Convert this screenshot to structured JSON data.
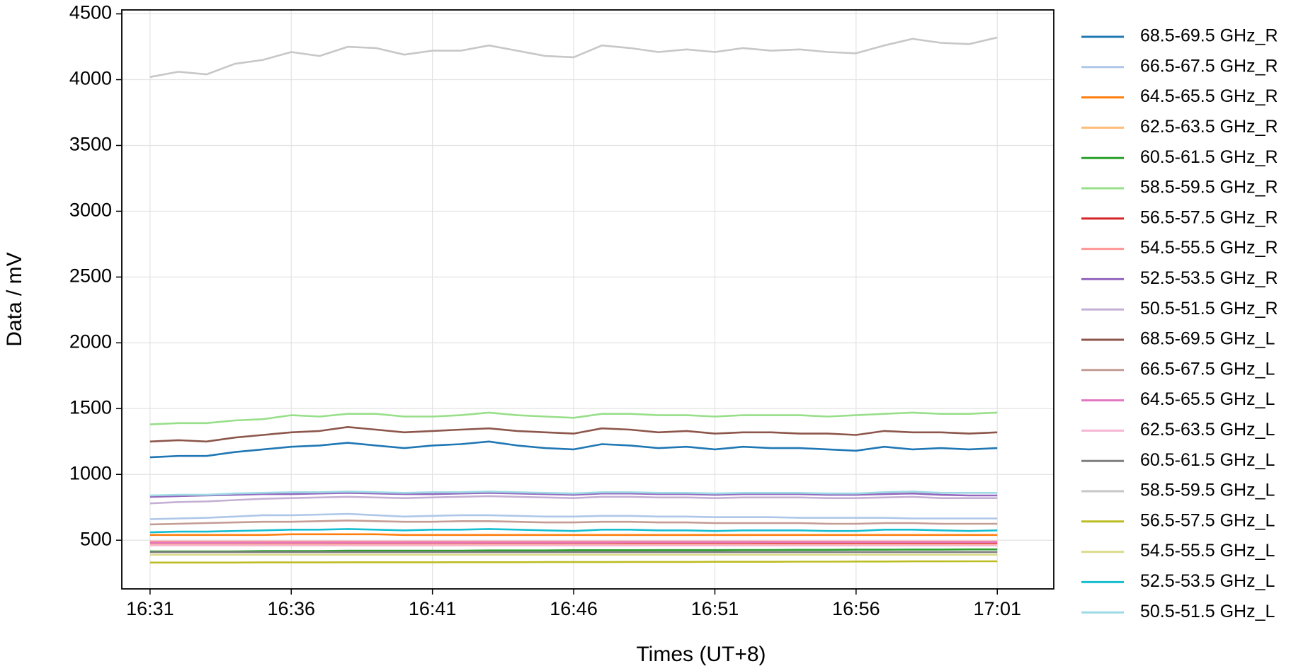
{
  "chart_data": {
    "type": "line",
    "x_label": "Times (UT+8)",
    "y_label": "Data / mV",
    "x": [
      "16:31",
      "16:32",
      "16:33",
      "16:34",
      "16:35",
      "16:36",
      "16:37",
      "16:38",
      "16:39",
      "16:40",
      "16:41",
      "16:42",
      "16:43",
      "16:44",
      "16:45",
      "16:46",
      "16:47",
      "16:48",
      "16:49",
      "16:50",
      "16:51",
      "16:52",
      "16:53",
      "16:54",
      "16:55",
      "16:56",
      "16:57",
      "16:58",
      "16:59",
      "17:00",
      "17:01"
    ],
    "xlim": [
      "16:30",
      "17:03"
    ],
    "xticks": [
      "16:31",
      "16:36",
      "16:41",
      "16:46",
      "16:51",
      "16:56",
      "17:01"
    ],
    "ylim": [
      130,
      4530
    ],
    "yticks": [
      500,
      1000,
      1500,
      2000,
      2500,
      3000,
      3500,
      4000,
      4500
    ],
    "grid": true,
    "legend": "outside-right",
    "series": [
      {
        "name": "68.5-69.5 GHz_R",
        "color": "#1f77b4",
        "values": [
          1130,
          1140,
          1140,
          1170,
          1190,
          1210,
          1220,
          1240,
          1220,
          1200,
          1220,
          1230,
          1250,
          1220,
          1200,
          1190,
          1230,
          1220,
          1200,
          1210,
          1190,
          1210,
          1200,
          1200,
          1190,
          1180,
          1210,
          1190,
          1200,
          1190,
          1200
        ]
      },
      {
        "name": "66.5-67.5 GHz_R",
        "color": "#aec7e8",
        "values": [
          660,
          665,
          670,
          680,
          690,
          690,
          695,
          700,
          690,
          680,
          685,
          690,
          690,
          685,
          680,
          680,
          685,
          685,
          680,
          680,
          675,
          675,
          675,
          670,
          670,
          670,
          670,
          665,
          665,
          665,
          665
        ]
      },
      {
        "name": "64.5-65.5 GHz_R",
        "color": "#ff7f0e",
        "values": [
          540,
          540,
          540,
          540,
          540,
          545,
          545,
          545,
          545,
          540,
          540,
          540,
          540,
          540,
          540,
          540,
          540,
          540,
          540,
          540,
          540,
          540,
          540,
          540,
          540,
          540,
          540,
          540,
          540,
          540,
          540
        ]
      },
      {
        "name": "62.5-63.5 GHz_R",
        "color": "#ffbb78",
        "values": [
          470,
          470,
          470,
          470,
          470,
          470,
          470,
          470,
          470,
          470,
          470,
          470,
          470,
          470,
          470,
          470,
          470,
          470,
          470,
          470,
          470,
          470,
          470,
          470,
          470,
          470,
          470,
          470,
          470,
          470,
          470
        ]
      },
      {
        "name": "60.5-61.5 GHz_R",
        "color": "#2ca02c",
        "values": [
          415,
          415,
          415,
          415,
          418,
          418,
          418,
          420,
          420,
          420,
          420,
          420,
          422,
          422,
          422,
          424,
          424,
          424,
          425,
          425,
          425,
          426,
          426,
          427,
          427,
          428,
          428,
          429,
          429,
          430,
          430
        ]
      },
      {
        "name": "58.5-59.5 GHz_R",
        "color": "#98df8a",
        "values": [
          1380,
          1390,
          1390,
          1410,
          1420,
          1450,
          1440,
          1460,
          1460,
          1440,
          1440,
          1450,
          1470,
          1450,
          1440,
          1430,
          1460,
          1460,
          1450,
          1450,
          1440,
          1450,
          1450,
          1450,
          1440,
          1450,
          1460,
          1470,
          1460,
          1460,
          1470
        ]
      },
      {
        "name": "56.5-57.5 GHz_R",
        "color": "#d62728",
        "values": [
          480,
          480,
          480,
          480,
          480,
          480,
          480,
          480,
          480,
          480,
          480,
          480,
          480,
          480,
          480,
          480,
          480,
          480,
          480,
          480,
          480,
          480,
          480,
          480,
          480,
          480,
          480,
          480,
          480,
          480,
          480
        ]
      },
      {
        "name": "54.5-55.5 GHz_R",
        "color": "#ff9896",
        "values": [
          490,
          490,
          490,
          490,
          490,
          490,
          490,
          490,
          490,
          490,
          490,
          490,
          490,
          490,
          490,
          490,
          490,
          490,
          490,
          490,
          490,
          490,
          490,
          490,
          490,
          490,
          490,
          490,
          490,
          490,
          490
        ]
      },
      {
        "name": "52.5-53.5 GHz_R",
        "color": "#9467bd",
        "values": [
          830,
          835,
          840,
          845,
          850,
          850,
          855,
          860,
          855,
          850,
          850,
          855,
          860,
          855,
          850,
          845,
          855,
          855,
          850,
          850,
          845,
          850,
          850,
          850,
          845,
          845,
          850,
          855,
          845,
          840,
          840
        ]
      },
      {
        "name": "50.5-51.5 GHz_R",
        "color": "#c5b0d5",
        "values": [
          780,
          790,
          795,
          805,
          815,
          820,
          825,
          830,
          825,
          820,
          825,
          830,
          835,
          830,
          825,
          820,
          830,
          830,
          825,
          825,
          820,
          825,
          825,
          825,
          820,
          820,
          825,
          830,
          820,
          820,
          820
        ]
      },
      {
        "name": "68.5-69.5 GHz_L",
        "color": "#8c564b",
        "values": [
          1250,
          1260,
          1250,
          1280,
          1300,
          1320,
          1330,
          1360,
          1340,
          1320,
          1330,
          1340,
          1350,
          1330,
          1320,
          1310,
          1350,
          1340,
          1320,
          1330,
          1310,
          1320,
          1320,
          1310,
          1310,
          1300,
          1330,
          1320,
          1320,
          1310,
          1320
        ]
      },
      {
        "name": "66.5-67.5 GHz_L",
        "color": "#c49c94",
        "values": [
          620,
          625,
          630,
          635,
          640,
          640,
          645,
          650,
          645,
          640,
          640,
          645,
          645,
          640,
          635,
          635,
          640,
          640,
          635,
          635,
          630,
          630,
          630,
          630,
          625,
          625,
          630,
          630,
          625,
          625,
          625
        ]
      },
      {
        "name": "64.5-65.5 GHz_L",
        "color": "#e377c2",
        "values": [
          480,
          480,
          480,
          480,
          481,
          481,
          481,
          482,
          482,
          482,
          482,
          482,
          483,
          483,
          483,
          483,
          483,
          484,
          484,
          484,
          484,
          484,
          485,
          485,
          485,
          485,
          485,
          485,
          485,
          485,
          485
        ]
      },
      {
        "name": "62.5-63.5 GHz_L",
        "color": "#f7b6d2",
        "values": [
          460,
          460,
          460,
          460,
          460,
          460,
          460,
          460,
          460,
          460,
          460,
          460,
          460,
          460,
          460,
          460,
          460,
          460,
          460,
          460,
          460,
          460,
          460,
          460,
          460,
          460,
          460,
          460,
          460,
          460,
          460
        ]
      },
      {
        "name": "60.5-61.5 GHz_L",
        "color": "#7f7f7f",
        "values": [
          410,
          410,
          410,
          410,
          410,
          410,
          410,
          410,
          410,
          410,
          410,
          410,
          410,
          410,
          410,
          410,
          410,
          410,
          410,
          410,
          410,
          410,
          410,
          410,
          410,
          410,
          410,
          410,
          410,
          410,
          410
        ]
      },
      {
        "name": "58.5-59.5 GHz_L",
        "color": "#c7c7c7",
        "values": [
          4020,
          4060,
          4040,
          4120,
          4150,
          4210,
          4180,
          4250,
          4240,
          4190,
          4220,
          4220,
          4260,
          4220,
          4180,
          4170,
          4260,
          4240,
          4210,
          4230,
          4210,
          4240,
          4220,
          4230,
          4210,
          4200,
          4260,
          4310,
          4280,
          4270,
          4320
        ]
      },
      {
        "name": "56.5-57.5 GHz_L",
        "color": "#bcbd22",
        "values": [
          330,
          330,
          330,
          330,
          331,
          331,
          331,
          332,
          332,
          332,
          332,
          333,
          333,
          333,
          334,
          334,
          334,
          335,
          335,
          335,
          336,
          336,
          336,
          337,
          337,
          338,
          338,
          339,
          339,
          340,
          340
        ]
      },
      {
        "name": "54.5-55.5 GHz_L",
        "color": "#dbdb8d",
        "values": [
          390,
          390,
          390,
          390,
          390,
          390,
          390,
          390,
          390,
          390,
          390,
          390,
          390,
          390,
          390,
          390,
          390,
          390,
          390,
          390,
          390,
          390,
          390,
          390,
          390,
          390,
          390,
          390,
          390,
          390,
          390
        ]
      },
      {
        "name": "52.5-53.5 GHz_L",
        "color": "#17becf",
        "values": [
          560,
          565,
          565,
          570,
          575,
          580,
          580,
          585,
          580,
          575,
          580,
          580,
          585,
          580,
          575,
          570,
          580,
          580,
          575,
          575,
          570,
          575,
          575,
          575,
          570,
          570,
          580,
          580,
          575,
          570,
          575
        ]
      },
      {
        "name": "50.5-51.5 GHz_L",
        "color": "#9edae5",
        "values": [
          840,
          845,
          845,
          855,
          860,
          865,
          865,
          870,
          865,
          860,
          865,
          865,
          870,
          865,
          860,
          855,
          865,
          865,
          860,
          860,
          855,
          860,
          860,
          860,
          855,
          855,
          865,
          870,
          860,
          860,
          860
        ]
      }
    ]
  }
}
